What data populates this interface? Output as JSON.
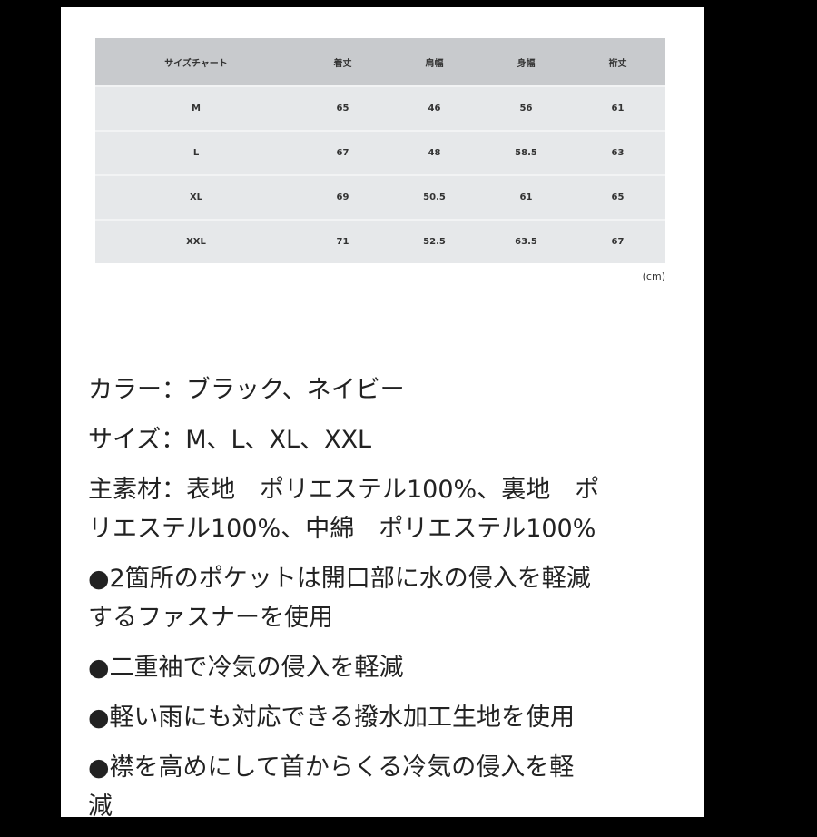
{
  "size_chart": {
    "headers": [
      "サイズチャート",
      "着丈",
      "肩幅",
      "身幅",
      "裄丈"
    ],
    "rows": [
      [
        "M",
        "65",
        "46",
        "56",
        "61"
      ],
      [
        "L",
        "67",
        "48",
        "58.5",
        "63"
      ],
      [
        "XL",
        "69",
        "50.5",
        "61",
        "65"
      ],
      [
        "XXL",
        "71",
        "52.5",
        "63.5",
        "67"
      ]
    ],
    "unit": "(cm)"
  },
  "description": [
    [
      "カラー：ブラック、ネイビー"
    ],
    [
      "サイズ：M、L、XL、XXL"
    ],
    [
      "主素材：表地　ポリエステル100%、裏地　ポ",
      "リエステル100%、中綿　ポリエステル100%"
    ],
    [
      "●2箇所のポケットは開口部に水の侵入を軽減",
      "するファスナーを使用"
    ],
    [
      "●二重袖で冷気の侵入を軽減"
    ],
    [
      "●軽い雨にも対応できる撥水加工生地を使用"
    ],
    [
      "●襟を高めにして首からくる冷気の侵入を軽",
      "減"
    ]
  ]
}
